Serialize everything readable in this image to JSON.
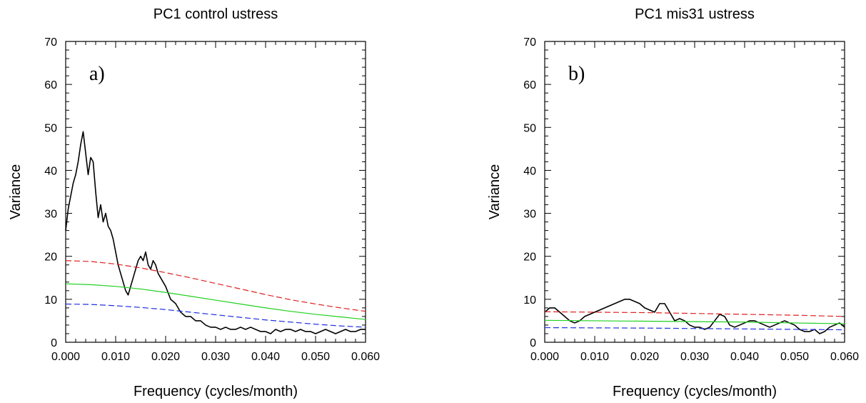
{
  "chart_data": [
    {
      "type": "line",
      "title": "PC1 control ustress",
      "panel_label": "a)",
      "xlabel": "Frequency (cycles/month)",
      "ylabel": "Variance",
      "xlim": [
        0.0,
        0.06
      ],
      "ylim": [
        0,
        70
      ],
      "x_ticks": [
        "0.000",
        "0.010",
        "0.020",
        "0.030",
        "0.040",
        "0.050",
        "0.060"
      ],
      "y_ticks": [
        "0",
        "10",
        "20",
        "30",
        "40",
        "50",
        "60",
        "70"
      ],
      "grid": false,
      "series": [
        {
          "color": "#000000",
          "style": "solid",
          "x": [
            0.0,
            0.0005,
            0.001,
            0.0015,
            0.002,
            0.0025,
            0.003,
            0.0035,
            0.004,
            0.0045,
            0.005,
            0.0055,
            0.006,
            0.0065,
            0.007,
            0.0075,
            0.008,
            0.0085,
            0.009,
            0.0095,
            0.01,
            0.0105,
            0.011,
            0.0115,
            0.012,
            0.0125,
            0.013,
            0.0135,
            0.014,
            0.0145,
            0.015,
            0.0155,
            0.016,
            0.0165,
            0.017,
            0.0175,
            0.018,
            0.0185,
            0.019,
            0.0195,
            0.02,
            0.021,
            0.022,
            0.023,
            0.024,
            0.025,
            0.026,
            0.027,
            0.028,
            0.029,
            0.03,
            0.031,
            0.032,
            0.033,
            0.034,
            0.035,
            0.036,
            0.037,
            0.038,
            0.039,
            0.04,
            0.041,
            0.042,
            0.043,
            0.044,
            0.045,
            0.046,
            0.047,
            0.048,
            0.049,
            0.05,
            0.051,
            0.052,
            0.053,
            0.054,
            0.055,
            0.056,
            0.057,
            0.058,
            0.059,
            0.06
          ],
          "y": [
            26,
            31,
            34,
            37,
            39,
            42,
            46,
            49,
            44,
            39,
            43,
            42,
            35,
            29,
            32,
            28,
            30,
            27,
            26,
            24,
            21,
            18,
            16,
            14,
            12,
            11,
            13,
            15,
            17,
            19,
            20,
            19,
            21,
            18,
            17,
            19,
            18,
            16,
            15,
            14,
            13,
            10,
            9,
            7,
            6,
            6,
            5,
            5,
            4,
            3.5,
            3.5,
            3,
            3.5,
            3,
            3,
            3.5,
            3,
            3.5,
            3,
            2.5,
            2.5,
            2,
            3,
            2.5,
            3,
            3,
            2.5,
            3,
            2.5,
            2.5,
            2,
            2.5,
            3,
            2.5,
            2,
            2.5,
            3,
            2.5,
            2.5,
            3,
            3
          ]
        },
        {
          "color": "#e02020",
          "style": "dashed",
          "x": [
            0.0,
            0.005,
            0.01,
            0.015,
            0.02,
            0.025,
            0.03,
            0.035,
            0.04,
            0.045,
            0.05,
            0.055,
            0.06
          ],
          "y": [
            19,
            18.8,
            18.2,
            17.3,
            16.2,
            15,
            13.7,
            12.4,
            11.1,
            9.9,
            8.9,
            8,
            7.2
          ]
        },
        {
          "color": "#20d020",
          "style": "solid",
          "x": [
            0.0,
            0.005,
            0.01,
            0.015,
            0.02,
            0.025,
            0.03,
            0.035,
            0.04,
            0.045,
            0.05,
            0.055,
            0.06
          ],
          "y": [
            13.6,
            13.4,
            13,
            12.4,
            11.6,
            10.7,
            9.8,
            8.9,
            8,
            7.2,
            6.5,
            5.9,
            5.3
          ]
        },
        {
          "color": "#2030e0",
          "style": "dashed",
          "x": [
            0.0,
            0.005,
            0.01,
            0.015,
            0.02,
            0.025,
            0.03,
            0.035,
            0.04,
            0.045,
            0.05,
            0.055,
            0.06
          ],
          "y": [
            8.9,
            8.8,
            8.5,
            8.1,
            7.6,
            7,
            6.4,
            5.8,
            5.2,
            4.7,
            4.2,
            3.8,
            3.5
          ]
        }
      ]
    },
    {
      "type": "line",
      "title": "PC1 mis31 ustress",
      "panel_label": "b)",
      "xlabel": "Frequency (cycles/month)",
      "ylabel": "Variance",
      "xlim": [
        0.0,
        0.06
      ],
      "ylim": [
        0,
        70
      ],
      "x_ticks": [
        "0.000",
        "0.010",
        "0.020",
        "0.030",
        "0.040",
        "0.050",
        "0.060"
      ],
      "y_ticks": [
        "0",
        "10",
        "20",
        "30",
        "40",
        "50",
        "60",
        "70"
      ],
      "grid": false,
      "series": [
        {
          "color": "#000000",
          "style": "solid",
          "x": [
            0.0,
            0.001,
            0.002,
            0.003,
            0.004,
            0.005,
            0.006,
            0.007,
            0.008,
            0.009,
            0.01,
            0.011,
            0.012,
            0.013,
            0.014,
            0.015,
            0.016,
            0.017,
            0.018,
            0.019,
            0.02,
            0.021,
            0.022,
            0.023,
            0.024,
            0.025,
            0.026,
            0.027,
            0.028,
            0.029,
            0.03,
            0.031,
            0.032,
            0.033,
            0.034,
            0.035,
            0.036,
            0.037,
            0.038,
            0.039,
            0.04,
            0.041,
            0.042,
            0.043,
            0.044,
            0.045,
            0.046,
            0.047,
            0.048,
            0.049,
            0.05,
            0.051,
            0.052,
            0.053,
            0.054,
            0.055,
            0.056,
            0.057,
            0.058,
            0.059,
            0.06
          ],
          "y": [
            7,
            8,
            8,
            7,
            6,
            5,
            4.5,
            5,
            6,
            6.5,
            7,
            7.5,
            8,
            8.5,
            9,
            9.5,
            10,
            10,
            9.5,
            9,
            8,
            7.5,
            7,
            9,
            9,
            7,
            5,
            5.5,
            5,
            4,
            3.5,
            3.5,
            3,
            3.5,
            5,
            6.5,
            6,
            4,
            3.5,
            4,
            4.5,
            5,
            5,
            4.5,
            4,
            3.5,
            4,
            4.5,
            5,
            4.5,
            4,
            3,
            2.5,
            2.5,
            3,
            2,
            2.5,
            3.5,
            4,
            4.5,
            3.5
          ]
        },
        {
          "color": "#e02020",
          "style": "dashed",
          "x": [
            0.0,
            0.01,
            0.02,
            0.03,
            0.04,
            0.05,
            0.06
          ],
          "y": [
            7.1,
            7.0,
            6.9,
            6.7,
            6.5,
            6.3,
            6.0
          ]
        },
        {
          "color": "#20d020",
          "style": "solid",
          "x": [
            0.0,
            0.01,
            0.02,
            0.03,
            0.04,
            0.05,
            0.06
          ],
          "y": [
            5.1,
            5.0,
            4.9,
            4.8,
            4.7,
            4.5,
            4.3
          ]
        },
        {
          "color": "#2030e0",
          "style": "dashed",
          "x": [
            0.0,
            0.01,
            0.02,
            0.03,
            0.04,
            0.05,
            0.06
          ],
          "y": [
            3.4,
            3.35,
            3.3,
            3.2,
            3.1,
            3.0,
            2.9
          ]
        }
      ]
    }
  ]
}
